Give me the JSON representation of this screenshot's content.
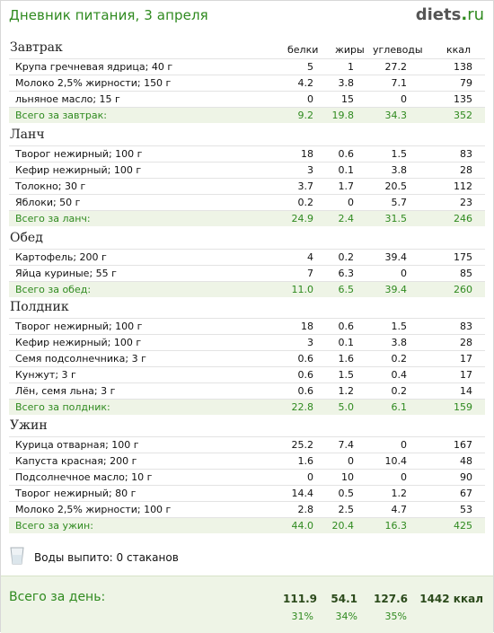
{
  "header": {
    "title": "Дневник питания, 3 апреля",
    "logo_main": "diets",
    "logo_dot": ".",
    "logo_tld": "ru"
  },
  "columns": {
    "protein": "белки",
    "fat": "жиры",
    "carbs": "углеводы",
    "kcal": "ккал"
  },
  "meals": [
    {
      "title": "Завтрак",
      "items": [
        {
          "name": "Крупа гречневая ядрица; 40 г",
          "p": "5",
          "f": "1",
          "c": "27.2",
          "k": "138"
        },
        {
          "name": "Молоко 2,5% жирности; 150 г",
          "p": "4.2",
          "f": "3.8",
          "c": "7.1",
          "k": "79"
        },
        {
          "name": "льняное масло; 15 г",
          "p": "0",
          "f": "15",
          "c": "0",
          "k": "135"
        }
      ],
      "total": {
        "name": "Всего за завтрак:",
        "p": "9.2",
        "f": "19.8",
        "c": "34.3",
        "k": "352"
      }
    },
    {
      "title": "Ланч",
      "items": [
        {
          "name": "Творог нежирный; 100 г",
          "p": "18",
          "f": "0.6",
          "c": "1.5",
          "k": "83"
        },
        {
          "name": "Кефир нежирный; 100 г",
          "p": "3",
          "f": "0.1",
          "c": "3.8",
          "k": "28"
        },
        {
          "name": "Толокно; 30 г",
          "p": "3.7",
          "f": "1.7",
          "c": "20.5",
          "k": "112"
        },
        {
          "name": "Яблоки; 50 г",
          "p": "0.2",
          "f": "0",
          "c": "5.7",
          "k": "23"
        }
      ],
      "total": {
        "name": "Всего за ланч:",
        "p": "24.9",
        "f": "2.4",
        "c": "31.5",
        "k": "246"
      }
    },
    {
      "title": "Обед",
      "items": [
        {
          "name": "Картофель; 200 г",
          "p": "4",
          "f": "0.2",
          "c": "39.4",
          "k": "175"
        },
        {
          "name": "Яйца куриные; 55 г",
          "p": "7",
          "f": "6.3",
          "c": "0",
          "k": "85"
        }
      ],
      "total": {
        "name": "Всего за обед:",
        "p": "11.0",
        "f": "6.5",
        "c": "39.4",
        "k": "260"
      }
    },
    {
      "title": "Полдник",
      "items": [
        {
          "name": "Творог нежирный; 100 г",
          "p": "18",
          "f": "0.6",
          "c": "1.5",
          "k": "83"
        },
        {
          "name": "Кефир нежирный; 100 г",
          "p": "3",
          "f": "0.1",
          "c": "3.8",
          "k": "28"
        },
        {
          "name": "Семя подсолнечника; 3 г",
          "p": "0.6",
          "f": "1.6",
          "c": "0.2",
          "k": "17"
        },
        {
          "name": "Кунжут; 3 г",
          "p": "0.6",
          "f": "1.5",
          "c": "0.4",
          "k": "17"
        },
        {
          "name": "Лён, семя льна; 3 г",
          "p": "0.6",
          "f": "1.2",
          "c": "0.2",
          "k": "14"
        }
      ],
      "total": {
        "name": "Всего за полдник:",
        "p": "22.8",
        "f": "5.0",
        "c": "6.1",
        "k": "159"
      }
    },
    {
      "title": "Ужин",
      "items": [
        {
          "name": "Курица отварная; 100 г",
          "p": "25.2",
          "f": "7.4",
          "c": "0",
          "k": "167"
        },
        {
          "name": "Капуста красная; 200 г",
          "p": "1.6",
          "f": "0",
          "c": "10.4",
          "k": "48"
        },
        {
          "name": "Подсолнечное масло; 10 г",
          "p": "0",
          "f": "10",
          "c": "0",
          "k": "90"
        },
        {
          "name": "Творог нежирный; 80 г",
          "p": "14.4",
          "f": "0.5",
          "c": "1.2",
          "k": "67"
        },
        {
          "name": "Молоко 2,5% жирности; 100 г",
          "p": "2.8",
          "f": "2.5",
          "c": "4.7",
          "k": "53"
        }
      ],
      "total": {
        "name": "Всего за ужин:",
        "p": "44.0",
        "f": "20.4",
        "c": "16.3",
        "k": "425"
      }
    }
  ],
  "water": {
    "label": "Воды выпито: 0 стаканов"
  },
  "day_total": {
    "label": "Всего за день:",
    "protein": "111.9",
    "fat": "54.1",
    "carbs": "127.6",
    "kcal": "1442 ккал",
    "protein_pct": "31%",
    "fat_pct": "34%",
    "carbs_pct": "35%"
  },
  "colors": {
    "accent_green": "#2f8a1f",
    "total_row_bg": "#eef4e6"
  }
}
